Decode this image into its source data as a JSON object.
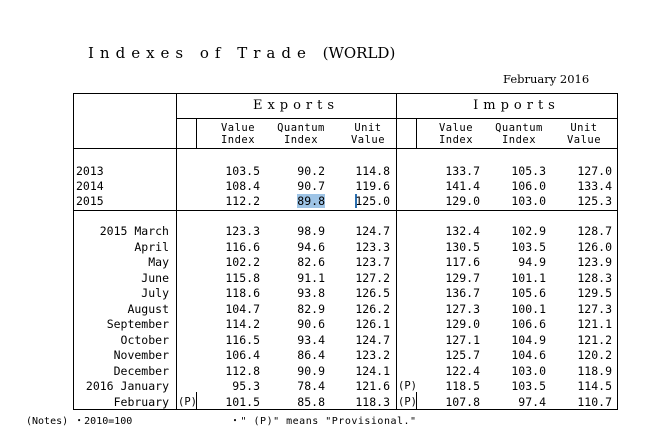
{
  "title": "Indexes of Trade",
  "title_suffix": "(WORLD)",
  "date": "February 2016",
  "groups": {
    "exports": "Exports",
    "imports": "Imports"
  },
  "columns": {
    "exp_value": [
      "Value",
      "Index"
    ],
    "exp_quantum": [
      "Quantum",
      "Index"
    ],
    "exp_unit": [
      "Unit",
      "Value"
    ],
    "imp_value": [
      "Value",
      "Index"
    ],
    "imp_quantum": [
      "Quantum",
      "Index"
    ],
    "imp_unit": [
      "Unit",
      "Value"
    ]
  },
  "annual_rows": [
    {
      "label": "2013",
      "ev": "103.5",
      "eq": "90.2",
      "eu": "114.8",
      "iv": "133.7",
      "iq": "105.3",
      "iu": "127.0"
    },
    {
      "label": "2014",
      "ev": "108.4",
      "eq": "90.7",
      "eu": "119.6",
      "iv": "141.4",
      "iq": "106.0",
      "iu": "133.4"
    },
    {
      "label": "2015",
      "ev": "112.2",
      "eq": "89.8",
      "eu": "125.0",
      "iv": "129.0",
      "iq": "103.0",
      "iu": "125.3"
    }
  ],
  "monthly_rows": [
    {
      "label": "2015 March",
      "ev": "123.3",
      "eq": "98.9",
      "eu": "124.7",
      "iv": "132.4",
      "iq": "102.9",
      "iu": "128.7"
    },
    {
      "label": "April",
      "ev": "116.6",
      "eq": "94.6",
      "eu": "123.3",
      "iv": "130.5",
      "iq": "103.5",
      "iu": "126.0"
    },
    {
      "label": "May",
      "ev": "102.2",
      "eq": "82.6",
      "eu": "123.7",
      "iv": "117.6",
      "iq": "94.9",
      "iu": "123.9"
    },
    {
      "label": "June",
      "ev": "115.8",
      "eq": "91.1",
      "eu": "127.2",
      "iv": "129.7",
      "iq": "101.1",
      "iu": "128.3"
    },
    {
      "label": "July",
      "ev": "118.6",
      "eq": "93.8",
      "eu": "126.5",
      "iv": "136.7",
      "iq": "105.6",
      "iu": "129.5"
    },
    {
      "label": "August",
      "ev": "104.7",
      "eq": "82.9",
      "eu": "126.2",
      "iv": "127.3",
      "iq": "100.1",
      "iu": "127.3"
    },
    {
      "label": "September",
      "ev": "114.2",
      "eq": "90.6",
      "eu": "126.1",
      "iv": "129.0",
      "iq": "106.6",
      "iu": "121.1"
    },
    {
      "label": "October",
      "ev": "116.5",
      "eq": "93.4",
      "eu": "124.7",
      "iv": "127.1",
      "iq": "104.9",
      "iu": "121.2"
    },
    {
      "label": "November",
      "ev": "106.4",
      "eq": "86.4",
      "eu": "123.2",
      "iv": "125.7",
      "iq": "104.6",
      "iu": "120.2"
    },
    {
      "label": "December",
      "ev": "112.8",
      "eq": "90.9",
      "eu": "124.1",
      "iv": "122.4",
      "iq": "103.0",
      "iu": "118.9"
    },
    {
      "label": "2016 January",
      "ev": "95.3",
      "eq": "78.4",
      "eu": "121.6",
      "imark": "(P)",
      "iv": "118.5",
      "iq": "103.5",
      "iu": "114.5"
    },
    {
      "label": "February",
      "emark": "(P)",
      "ev": "101.5",
      "eq": "85.8",
      "eu": "118.3",
      "imark": "(P)",
      "iv": "107.8",
      "iq": "97.4",
      "iu": "110.7"
    }
  ],
  "notes": "(Notes) ・2010=100",
  "notes2": "・\" (P)\" means \"Provisional.\""
}
